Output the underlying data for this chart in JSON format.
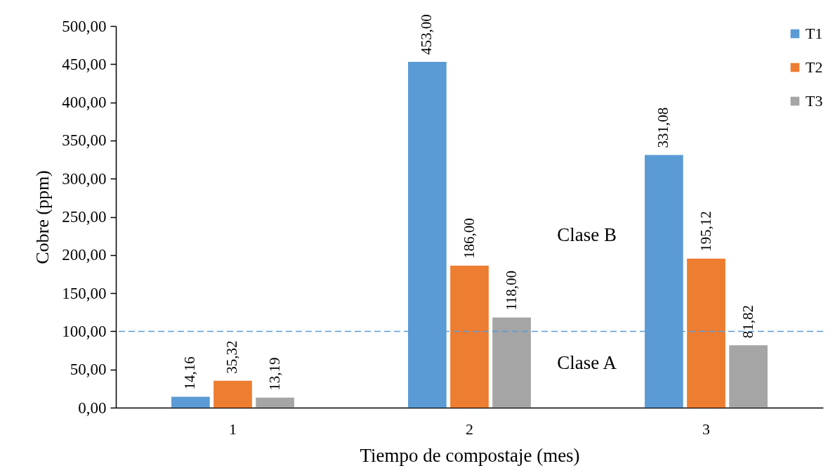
{
  "chart_data": {
    "type": "bar",
    "categories": [
      "1",
      "2",
      "3"
    ],
    "series": [
      {
        "name": "T1",
        "color": "#5b9bd5",
        "values": [
          14.16,
          453,
          331.08
        ],
        "value_labels": [
          "14,16",
          "453,00",
          "331,08"
        ]
      },
      {
        "name": "T2",
        "color": "#ed7d31",
        "values": [
          35.32,
          186,
          195.12
        ],
        "value_labels": [
          "35,32",
          "186,00",
          "195,12"
        ]
      },
      {
        "name": "T3",
        "color": "#a5a5a5",
        "values": [
          13.19,
          118,
          81.82
        ],
        "value_labels": [
          "13,19",
          "118,00",
          "81,82"
        ]
      }
    ],
    "xlabel": "Tiempo de compostaje (mes)",
    "ylabel": "Cobre (ppm)",
    "ylim": [
      0,
      500
    ],
    "yticks": [
      {
        "value": 0,
        "label": "0,00"
      },
      {
        "value": 50,
        "label": "50,00"
      },
      {
        "value": 100,
        "label": "100,00"
      },
      {
        "value": 150,
        "label": "150,00"
      },
      {
        "value": 200,
        "label": "200,00"
      },
      {
        "value": 250,
        "label": "250,00"
      },
      {
        "value": 300,
        "label": "300,00"
      },
      {
        "value": 350,
        "label": "350,00"
      },
      {
        "value": 400,
        "label": "400,00"
      },
      {
        "value": 450,
        "label": "450,00"
      },
      {
        "value": 500,
        "label": "500,00"
      }
    ],
    "legend": "top right",
    "ref_lines": [
      {
        "axis": "y",
        "value": 100,
        "color": "#5b9bd5",
        "line_style": "dashed"
      }
    ],
    "annotations": [
      "Clase B",
      "Clase A"
    ]
  }
}
